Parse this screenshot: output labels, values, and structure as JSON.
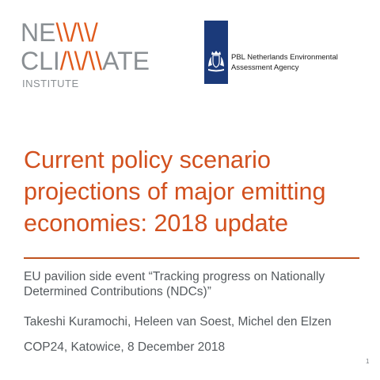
{
  "logos": {
    "newclimate": {
      "line1_start": "NE",
      "line1_mark": "\\\\/\\\\/",
      "line2_start": "CLI",
      "line2_mark": "/\\\\/\\\\",
      "line2_end": "ATE",
      "institute": "INSTITUTE",
      "accent_color": "#e05a1c",
      "text_color": "#8a8f93"
    },
    "pbl": {
      "line1": "PBL Netherlands Environmental",
      "line2": "Assessment Agency",
      "emblem_color": "#1b3a7a",
      "emblem_icon": "coat-of-arms-icon"
    }
  },
  "slide": {
    "title_line1": "Current policy scenario",
    "title_line2": "projections of major emitting",
    "title_line3": "economies: 2018 update",
    "subtitle_line1": "EU pavilion side event “Tracking progress on Nationally",
    "subtitle_line2": "Determined Contributions (NDCs)”",
    "authors": "Takeshi Kuramochi, Heleen van Soest, Michel den Elzen",
    "event": "COP24, Katowice, 8 December 2018",
    "page_number": "1",
    "title_color": "#d2501e",
    "body_color": "#555a5e"
  }
}
